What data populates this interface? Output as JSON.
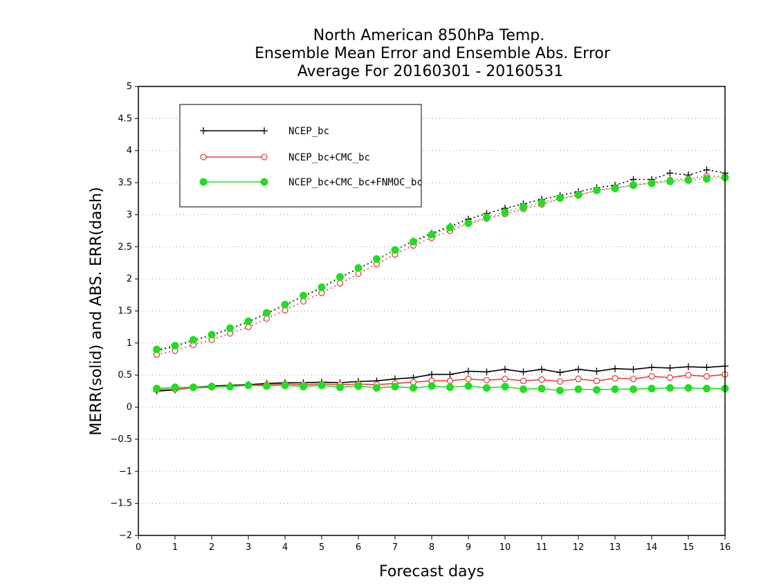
{
  "chart_data": {
    "type": "line",
    "title_lines": [
      "North American 850hPa Temp.",
      "Ensemble Mean Error and Ensemble Abs. Error",
      "Average For 20160301 - 20160531"
    ],
    "xlabel": "Forecast days",
    "ylabel": "MERR(solid) and ABS. ERR(dash)",
    "xlim": [
      0,
      16
    ],
    "ylim": [
      -2,
      5
    ],
    "x_ticks": [
      0,
      1,
      2,
      3,
      4,
      5,
      6,
      7,
      8,
      9,
      10,
      11,
      12,
      13,
      14,
      15,
      16
    ],
    "y_ticks": [
      -2,
      -1.5,
      -1,
      -0.5,
      0,
      0.5,
      1,
      1.5,
      2,
      2.5,
      3,
      3.5,
      4,
      4.5,
      5
    ],
    "grid": "horizontal dotted",
    "legend_placement": "top-left",
    "x": [
      0.5,
      1,
      1.5,
      2,
      2.5,
      3,
      3.5,
      4,
      4.5,
      5,
      5.5,
      6,
      6.5,
      7,
      7.5,
      8,
      8.5,
      9,
      9.5,
      10,
      10.5,
      11,
      11.5,
      12,
      12.5,
      13,
      13.5,
      14,
      14.5,
      15,
      15.5,
      16
    ],
    "series": [
      {
        "name": "NCEP_bc",
        "color": "#000000",
        "marker": "plus",
        "merr": [
          0.25,
          0.27,
          0.31,
          0.33,
          0.34,
          0.35,
          0.37,
          0.38,
          0.38,
          0.39,
          0.38,
          0.4,
          0.41,
          0.44,
          0.46,
          0.51,
          0.51,
          0.56,
          0.55,
          0.59,
          0.55,
          0.59,
          0.54,
          0.59,
          0.56,
          0.6,
          0.59,
          0.62,
          0.61,
          0.63,
          0.62,
          0.64
        ],
        "abs_err": [
          0.88,
          0.95,
          1.04,
          1.12,
          1.22,
          1.33,
          1.46,
          1.59,
          1.73,
          1.86,
          2.02,
          2.16,
          2.3,
          2.45,
          2.59,
          2.71,
          2.82,
          2.93,
          3.02,
          3.1,
          3.17,
          3.24,
          3.3,
          3.36,
          3.42,
          3.46,
          3.55,
          3.55,
          3.65,
          3.62,
          3.7,
          3.65
        ]
      },
      {
        "name": "NCEP_bc+CMC_bc",
        "color": "#e8403c",
        "marker": "open-circle",
        "merr": [
          0.27,
          0.28,
          0.3,
          0.31,
          0.33,
          0.34,
          0.35,
          0.36,
          0.35,
          0.36,
          0.35,
          0.36,
          0.35,
          0.37,
          0.39,
          0.41,
          0.41,
          0.44,
          0.42,
          0.44,
          0.41,
          0.43,
          0.4,
          0.44,
          0.41,
          0.45,
          0.44,
          0.48,
          0.46,
          0.5,
          0.48,
          0.51
        ],
        "abs_err": [
          0.82,
          0.88,
          0.97,
          1.05,
          1.15,
          1.25,
          1.38,
          1.51,
          1.65,
          1.78,
          1.93,
          2.08,
          2.23,
          2.38,
          2.52,
          2.64,
          2.75,
          2.86,
          2.94,
          3.01,
          3.09,
          3.16,
          3.25,
          3.3,
          3.38,
          3.42,
          3.46,
          3.5,
          3.54,
          3.56,
          3.6,
          3.6
        ]
      },
      {
        "name": "NCEP_bc+CMC_bc+FNMOC_bc",
        "color": "#22dd22",
        "marker": "filled-circle",
        "merr": [
          0.29,
          0.31,
          0.31,
          0.32,
          0.32,
          0.34,
          0.33,
          0.34,
          0.32,
          0.34,
          0.31,
          0.33,
          0.3,
          0.32,
          0.3,
          0.33,
          0.31,
          0.33,
          0.3,
          0.32,
          0.28,
          0.29,
          0.26,
          0.28,
          0.27,
          0.28,
          0.28,
          0.29,
          0.3,
          0.3,
          0.29,
          0.29
        ],
        "abs_err": [
          0.9,
          0.96,
          1.05,
          1.13,
          1.23,
          1.34,
          1.47,
          1.6,
          1.74,
          1.87,
          2.03,
          2.17,
          2.31,
          2.45,
          2.58,
          2.69,
          2.8,
          2.87,
          2.96,
          3.04,
          3.12,
          3.19,
          3.26,
          3.31,
          3.38,
          3.41,
          3.46,
          3.49,
          3.52,
          3.54,
          3.56,
          3.58
        ]
      }
    ]
  }
}
